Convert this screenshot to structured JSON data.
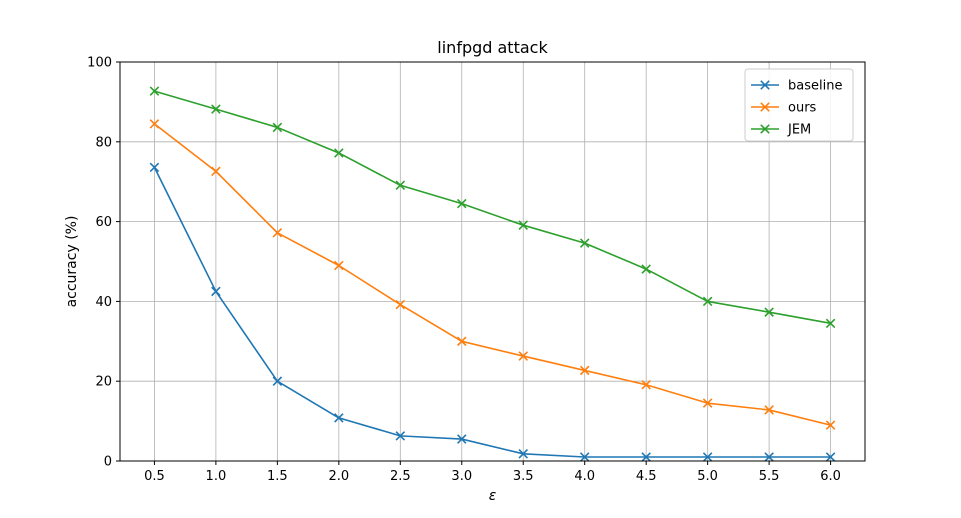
{
  "chart_data": {
    "type": "line",
    "title": "linfpgd attack",
    "xlabel": "ε",
    "ylabel": "accuracy (%)",
    "x": [
      0.5,
      1.0,
      1.5,
      2.0,
      2.5,
      3.0,
      3.5,
      4.0,
      4.5,
      5.0,
      5.5,
      6.0
    ],
    "xticks": [
      "0.5",
      "1.0",
      "1.5",
      "2.0",
      "2.5",
      "3.0",
      "3.5",
      "4.0",
      "4.5",
      "5.0",
      "5.5",
      "6.0"
    ],
    "yticks": [
      "0",
      "20",
      "40",
      "60",
      "80",
      "100"
    ],
    "xlim": [
      0.22,
      6.28
    ],
    "ylim": [
      0,
      100
    ],
    "grid": true,
    "legend_position": "top-right",
    "marker": "x",
    "series": [
      {
        "name": "baseline",
        "color": "#1f77b4",
        "values": [
          73.6,
          42.5,
          20.0,
          10.8,
          6.3,
          5.5,
          1.8,
          1.0,
          1.0,
          1.0,
          1.0,
          1.0
        ]
      },
      {
        "name": "ours",
        "color": "#ff7f0e",
        "values": [
          84.5,
          72.6,
          57.2,
          49.0,
          39.2,
          30.0,
          26.3,
          22.7,
          19.1,
          14.5,
          12.8,
          9.0
        ]
      },
      {
        "name": "JEM",
        "color": "#2ca02c",
        "values": [
          92.7,
          88.2,
          83.6,
          77.2,
          69.1,
          64.5,
          59.1,
          54.6,
          48.1,
          40.0,
          37.3,
          34.5
        ]
      }
    ]
  }
}
